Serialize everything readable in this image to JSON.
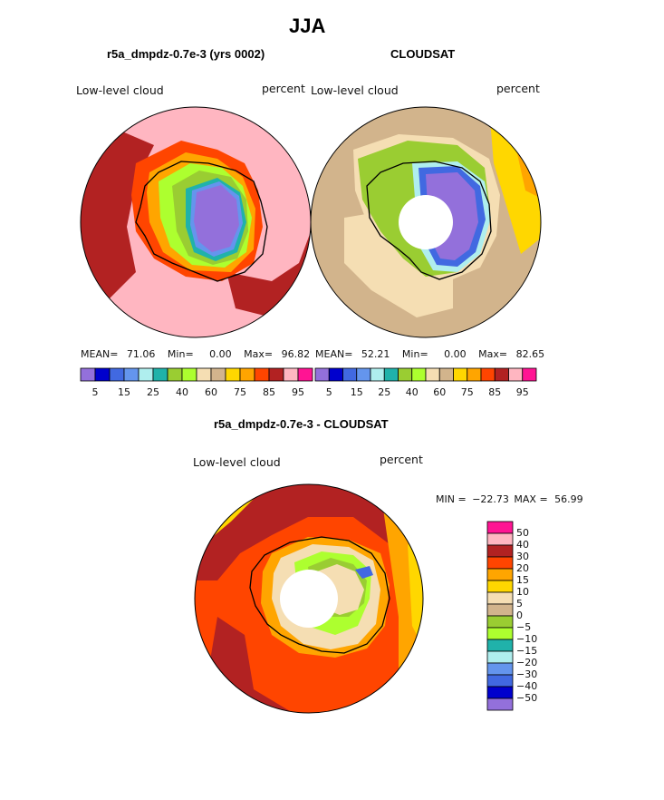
{
  "page": {
    "title": "JJA"
  },
  "chart_data": [
    {
      "type": "heatmap",
      "title": "r5a_dmpdz-0.7e-3 (yrs 0002)",
      "left_label": "Low-level cloud",
      "right_label": "percent",
      "stats": {
        "mean_label": "MEAN=",
        "mean": "71.06",
        "min_label": "Min=",
        "min": "0.00",
        "max_label": "Max=",
        "max": "96.82"
      },
      "colorbar_ticks": [
        "5",
        "15",
        "25",
        "40",
        "60",
        "75",
        "85",
        "95"
      ]
    },
    {
      "type": "heatmap",
      "title": "CLOUDSAT",
      "left_label": "Low-level cloud",
      "right_label": "percent",
      "stats": {
        "mean_label": "MEAN=",
        "mean": "52.21",
        "min_label": "Min=",
        "min": "0.00",
        "max_label": "Max=",
        "max": "82.65"
      },
      "colorbar_ticks": [
        "5",
        "15",
        "25",
        "40",
        "60",
        "75",
        "85",
        "95"
      ]
    },
    {
      "type": "heatmap",
      "title": "r5a_dmpdz-0.7e-3 - CLOUDSAT",
      "left_label": "Low-level cloud",
      "right_label": "percent",
      "minmax": {
        "min_label": "MIN =",
        "min": "−22.73",
        "max_label": "MAX =",
        "max": "56.99"
      },
      "colorbar_ticks": [
        "50",
        "40",
        "30",
        "20",
        "15",
        "10",
        "5",
        "0",
        "−5",
        "−10",
        "−15",
        "−20",
        "−30",
        "−40",
        "−50"
      ]
    }
  ],
  "colors": {
    "abs_scale": [
      "#9370db",
      "#0000cd",
      "#4169e1",
      "#6495ed",
      "#afeeee",
      "#20b2aa",
      "#9acd32",
      "#adff2f",
      "#f5deb3",
      "#d2b48c",
      "#ffd700",
      "#ffa500",
      "#ff4500",
      "#b22222",
      "#ffb6c1",
      "#ff1493"
    ],
    "diff_scale": [
      "#ff1493",
      "#ffb6c1",
      "#b22222",
      "#ff4500",
      "#ffa500",
      "#ffd700",
      "#f5deb3",
      "#d2b48c",
      "#9acd32",
      "#adff2f",
      "#20b2aa",
      "#afeeee",
      "#6495ed",
      "#4169e1",
      "#0000cd",
      "#9370db"
    ]
  }
}
